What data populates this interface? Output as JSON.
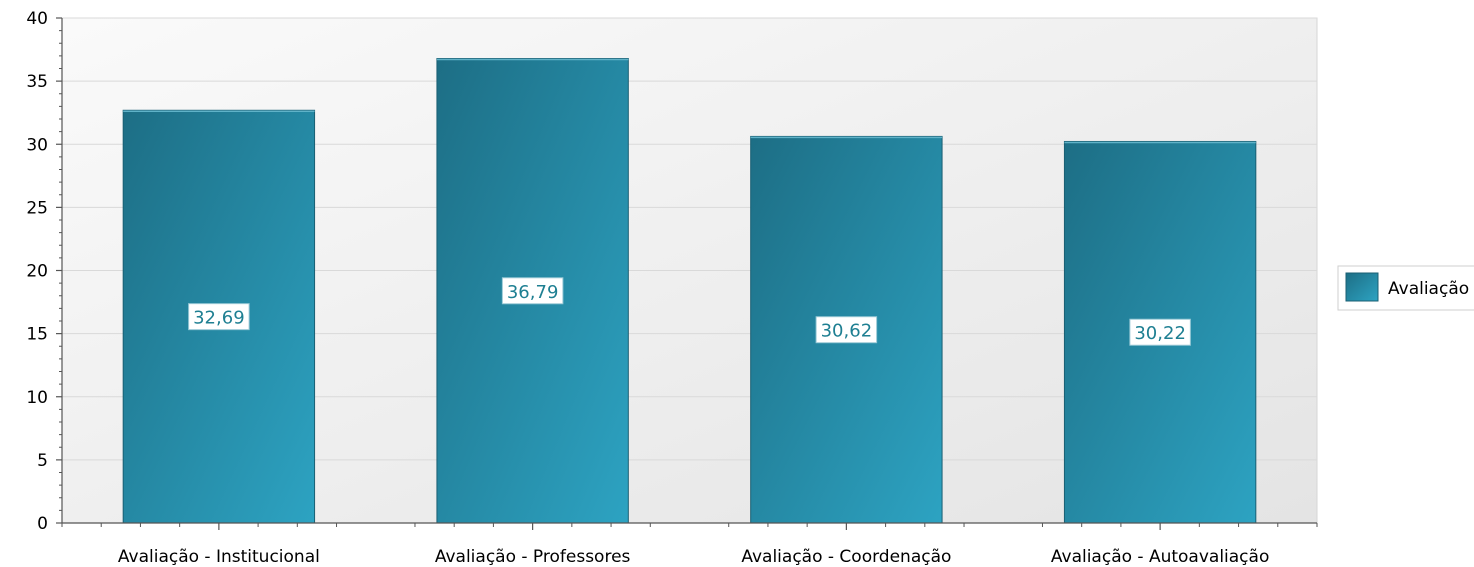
{
  "chart_data": {
    "type": "bar",
    "categories": [
      "Avaliação - Institucional",
      "Avaliação - Professores",
      "Avaliação - Coordenação",
      "Avaliação - Autoavaliação"
    ],
    "values": [
      32.69,
      36.79,
      30.62,
      30.22
    ],
    "data_labels": [
      "32,69",
      "36,79",
      "30,62",
      "30,22"
    ],
    "yticks": [
      0,
      5,
      10,
      15,
      20,
      25,
      30,
      35,
      40
    ],
    "ylim": [
      0,
      40
    ],
    "grid": true,
    "legend": {
      "position": "right",
      "entries": [
        "Avaliação"
      ]
    },
    "colors": {
      "bar_dark": "#1d6e85",
      "bar_light": "#2da3c2",
      "bar_edge": "#1a5f73",
      "label_text": "#1e7f92"
    }
  }
}
